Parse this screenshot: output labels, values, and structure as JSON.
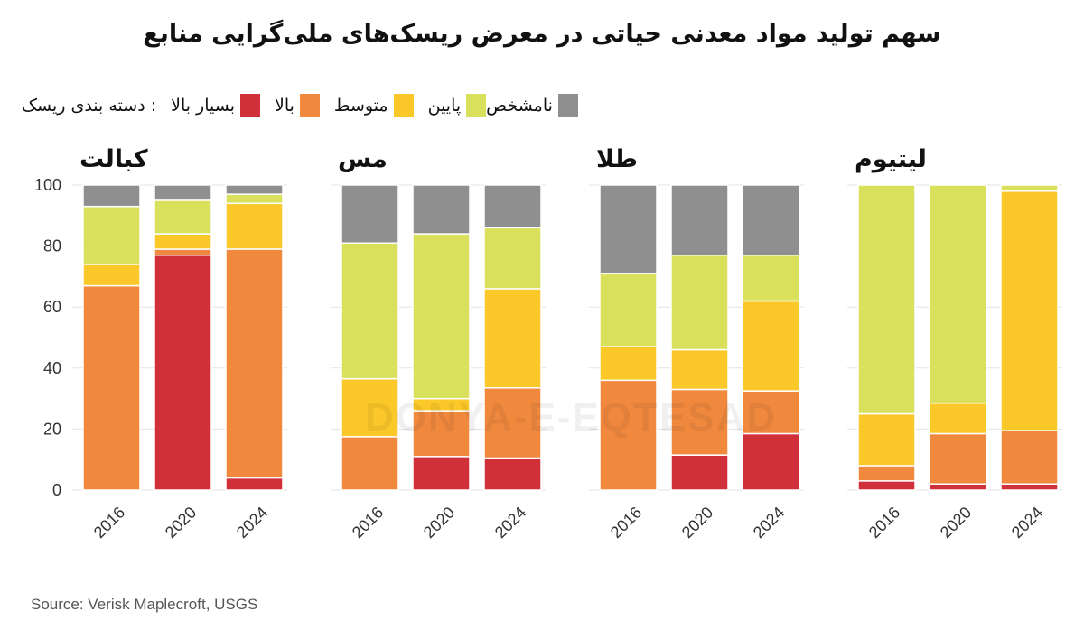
{
  "title": "سهم تولید مواد معدنی حیاتی در معرض ریسک‌های ملی‌گرایی منابع",
  "legend": {
    "heading": ": دسته بندی ریسک",
    "items": [
      {
        "label": "بسیار بالا",
        "color": "#d0303a"
      },
      {
        "label": "بالا",
        "color": "#f0883e"
      },
      {
        "label": "متوسط",
        "color": "#fbc82a"
      },
      {
        "label": "پایین",
        "color": "#d8e05c"
      },
      {
        "label": "نامشخص",
        "color": "#8f8f8f"
      }
    ]
  },
  "source": "Source: Verisk Maplecroft, USGS",
  "watermark": "DONYA-E-EQTESAD",
  "chart_data": [
    {
      "type": "bar",
      "stacked": true,
      "title": "کبالت",
      "categories": [
        "2016",
        "2020",
        "2024"
      ],
      "ylim": [
        0,
        100
      ],
      "yticks": [
        "0",
        "20",
        "40",
        "60",
        "80",
        "100"
      ],
      "grid": true,
      "series": [
        {
          "name": "بسیار بالا",
          "values": [
            0,
            77,
            4
          ]
        },
        {
          "name": "بالا",
          "values": [
            67,
            2,
            75
          ]
        },
        {
          "name": "متوسط",
          "values": [
            7,
            5,
            15
          ]
        },
        {
          "name": "پایین",
          "values": [
            19,
            11,
            3
          ]
        },
        {
          "name": "نامشخص",
          "values": [
            7,
            5,
            3
          ]
        }
      ]
    },
    {
      "type": "bar",
      "stacked": true,
      "title": "مس",
      "categories": [
        "2016",
        "2020",
        "2024"
      ],
      "ylim": [
        0,
        100
      ],
      "grid": true,
      "series": [
        {
          "name": "بسیار بالا",
          "values": [
            0,
            11,
            10.5
          ]
        },
        {
          "name": "بالا",
          "values": [
            17.5,
            15,
            23
          ]
        },
        {
          "name": "متوسط",
          "values": [
            19,
            4,
            32.5
          ]
        },
        {
          "name": "پایین",
          "values": [
            44.5,
            54,
            20
          ]
        },
        {
          "name": "نامشخص",
          "values": [
            19,
            16,
            14
          ]
        }
      ]
    },
    {
      "type": "bar",
      "stacked": true,
      "title": "طلا",
      "categories": [
        "2016",
        "2020",
        "2024"
      ],
      "ylim": [
        0,
        100
      ],
      "grid": true,
      "series": [
        {
          "name": "بسیار بالا",
          "values": [
            0,
            11.5,
            18.5
          ]
        },
        {
          "name": "بالا",
          "values": [
            36,
            21.5,
            14
          ]
        },
        {
          "name": "متوسط",
          "values": [
            11,
            13,
            29.5
          ]
        },
        {
          "name": "پایین",
          "values": [
            24,
            31,
            15
          ]
        },
        {
          "name": "نامشخص",
          "values": [
            29,
            23,
            23
          ]
        }
      ]
    },
    {
      "type": "bar",
      "stacked": true,
      "title": "لیتیوم",
      "categories": [
        "2016",
        "2020",
        "2024"
      ],
      "ylim": [
        0,
        100
      ],
      "grid": true,
      "series": [
        {
          "name": "بسیار بالا",
          "values": [
            3,
            2,
            2
          ]
        },
        {
          "name": "بالا",
          "values": [
            5,
            16.5,
            17.5
          ]
        },
        {
          "name": "متوسط",
          "values": [
            17,
            10,
            78.5
          ]
        },
        {
          "name": "پایین",
          "values": [
            75,
            71.5,
            2
          ]
        },
        {
          "name": "نامشخص",
          "values": [
            0,
            0,
            0
          ]
        }
      ]
    }
  ]
}
